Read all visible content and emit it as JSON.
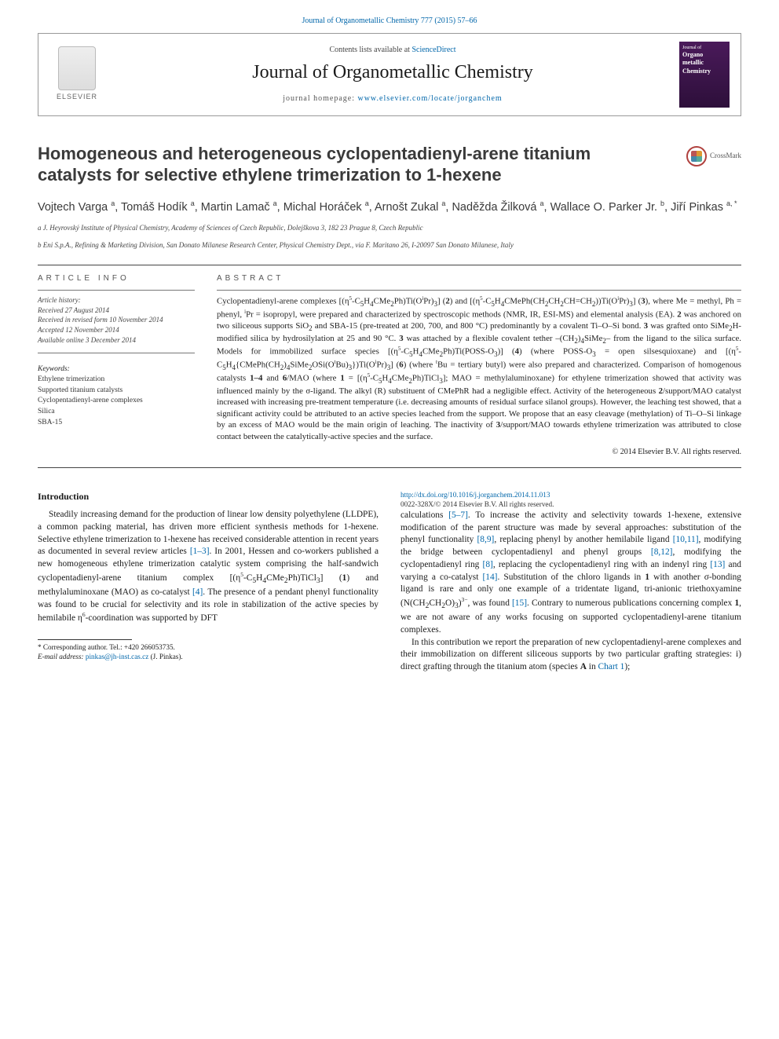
{
  "top_citation": "Journal of Organometallic Chemistry 777 (2015) 57–66",
  "header": {
    "contents_prefix": "Contents lists available at ",
    "contents_link": "ScienceDirect",
    "journal_name": "Journal of Organometallic Chemistry",
    "home_prefix": "journal homepage: ",
    "home_link": "www.elsevier.com/locate/jorganchem",
    "elsevier_label": "ELSEVIER",
    "cover_top": "Journal of",
    "cover_mid1": "Organo",
    "cover_mid2": "metallic",
    "cover_mid3": "Chemistry"
  },
  "crossmark_label": "CrossMark",
  "title": "Homogeneous and heterogeneous cyclopentadienyl-arene titanium catalysts for selective ethylene trimerization to 1-hexene",
  "authors_html": "Vojtech Varga <sup>a</sup>, Tomáš Hodík <sup>a</sup>, Martin Lamač <sup>a</sup>, Michal Horáček <sup>a</sup>, Arnošt Zukal <sup>a</sup>, Naděžda Žilková <sup>a</sup>, Wallace O. Parker Jr. <sup>b</sup>, Jiří Pinkas <sup>a, *</sup>",
  "affiliations": {
    "a": "a J. Heyrovský Institute of Physical Chemistry, Academy of Sciences of Czech Republic, Dolejškova 3, 182 23 Prague 8, Czech Republic",
    "b": "b Eni S.p.A., Refining & Marketing Division, San Donato Milanese Research Center, Physical Chemistry Dept., via F. Maritano 26, I-20097 San Donato Milanese, Italy"
  },
  "article_info": {
    "heading": "ARTICLE INFO",
    "history_label": "Article history:",
    "received": "Received 27 August 2014",
    "revised": "Received in revised form 10 November 2014",
    "accepted": "Accepted 12 November 2014",
    "online": "Available online 3 December 2014",
    "kw_label": "Keywords:",
    "keywords": [
      "Ethylene trimerization",
      "Supported titanium catalysts",
      "Cyclopentadienyl-arene complexes",
      "Silica",
      "SBA-15"
    ]
  },
  "abstract": {
    "heading": "ABSTRACT",
    "body_html": "Cyclopentadienyl-arene complexes [(η<sup>5</sup>-C<sub>5</sub>H<sub>4</sub>CMe<sub>2</sub>Ph)Ti(O<sup>i</sup>Pr)<sub>3</sub>] (<b>2</b>) and [(η<sup>5</sup>-C<sub>5</sub>H<sub>4</sub>CMePh(CH<sub>2</sub>CH<sub>2</sub>CH=CH<sub>2</sub>))Ti(O<sup>i</sup>Pr)<sub>3</sub>] (<b>3</b>), where Me = methyl, Ph = phenyl, <sup>i</sup>Pr = isopropyl, were prepared and characterized by spectroscopic methods (NMR, IR, ESI-MS) and elemental analysis (EA). <b>2</b> was anchored on two siliceous supports SiO<sub>2</sub> and SBA-15 (pre-treated at 200, 700, and 800 °C) predominantly by a covalent Ti–O–Si bond. <b>3</b> was grafted onto SiMe<sub>2</sub>H-modified silica by hydrosilylation at 25 and 90 °C. <b>3</b> was attached by a flexible covalent tether –(CH<sub>2</sub>)<sub>4</sub>SiMe<sub>2</sub>– from the ligand to the silica surface. Models for immobilized surface species [(η<sup>5</sup>-C<sub>5</sub>H<sub>4</sub>CMe<sub>2</sub>Ph)Ti(POSS-O<sub>3</sub>)] (<b>4</b>) (where POSS-O<sub>3</sub> = open silsesquioxane) and [(η<sup>5</sup>-C<sub>5</sub>H<sub>4</sub>{CMePh(CH<sub>2</sub>)<sub>4</sub>SiMe<sub>2</sub>OSi(O<sup>t</sup>Bu)<sub>3</sub>})Ti(O<sup>i</sup>Pr)<sub>3</sub>] (<b>6</b>) (where <sup>t</sup>Bu = tertiary butyl) were also prepared and characterized. Comparison of homogenous catalysts <b>1–4</b> and <b>6</b>/MAO (where <b>1</b> = [(η<sup>5</sup>-C<sub>5</sub>H<sub>4</sub>CMe<sub>2</sub>Ph)TiCl<sub>3</sub>]; MAO = methylaluminoxane) for ethylene trimerization showed that activity was influenced mainly by the σ-ligand. The alkyl (R) substituent of CMePhR had a negligible effect. Activity of the heterogeneous <b>2</b>/support/MAO catalyst increased with increasing pre-treatment temperature (i.e. decreasing amounts of residual surface silanol groups). However, the leaching test showed, that a significant activity could be attributed to an active species leached from the support. We propose that an easy cleavage (methylation) of Ti–O–Si linkage by an excess of MAO would be the main origin of leaching. The inactivity of <b>3</b>/support/MAO towards ethylene trimerization was attributed to close contact between the catalytically-active species and the surface.",
    "copyright": "© 2014 Elsevier B.V. All rights reserved."
  },
  "intro": {
    "heading": "Introduction",
    "para1_html": "Steadily increasing demand for the production of linear low density polyethylene (LLDPE), a common packing material, has driven more efficient synthesis methods for 1-hexene. Selective ethylene trimerization to 1-hexene has received considerable attention in recent years as documented in several review articles <span class='link'>[1–3]</span>. In 2001, Hessen and co-workers published a new homogeneous ethylene trimerization catalytic system comprising the half-sandwich cyclopentadienyl-arene titanium complex [(η<sup>5</sup>-C<sub>5</sub>H<sub>4</sub>CMe<sub>2</sub>Ph)TiCl<sub>3</sub>] (<b>1</b>) and methylaluminoxane (MAO) as co-catalyst <span class='link'>[4]</span>. The presence of a pendant phenyl functionality was found to be crucial for selectivity and its role in stabilization of the active species by hemilabile η<sup>6</sup>-coordination was supported by DFT",
    "para2_html": "calculations <span class='link'>[5–7]</span>. To increase the activity and selectivity towards 1-hexene, extensive modification of the parent structure was made by several approaches: substitution of the phenyl functionality <span class='link'>[8,9]</span>, replacing phenyl by another hemilabile ligand <span class='link'>[10,11]</span>, modifying the bridge between cyclopentadienyl and phenyl groups <span class='link'>[8,12]</span>, modifying the cyclopentadienyl ring <span class='link'>[8]</span>, replacing the cyclopentadienyl ring with an indenyl ring <span class='link'>[13]</span> and varying a co-catalyst <span class='link'>[14]</span>. Substitution of the chloro ligands in <b>1</b> with another σ-bonding ligand is rare and only one example of a tridentate ligand, tri-anionic triethoxyamine (N(CH<sub>2</sub>CH<sub>2</sub>O)<sub>3</sub>)<sup>3−</sup>, was found <span class='link'>[15]</span>. Contrary to numerous publications concerning complex <b>1</b>, we are not aware of any works focusing on supported cyclopentadienyl-arene titanium complexes.",
    "para3_html": "In this contribution we report the preparation of new cyclopentadienyl-arene complexes and their immobilization on different siliceous supports by two particular grafting strategies: i) direct grafting through the titanium atom (species <b>A</b> in <span class='link'>Chart 1</span>);"
  },
  "footnotes": {
    "corr": "* Corresponding author. Tel.: +420 266053735.",
    "email_label": "E-mail address: ",
    "email": "pinkas@jh-inst.cas.cz",
    "email_suffix": " (J. Pinkas)."
  },
  "doi": {
    "link": "http://dx.doi.org/10.1016/j.jorganchem.2014.11.013",
    "issn_line": "0022-328X/© 2014 Elsevier B.V. All rights reserved."
  },
  "colors": {
    "link": "#0066aa",
    "text": "#1a1a1a",
    "rule": "#444444",
    "cover_bg_top": "#4a1a5a",
    "cover_bg_bot": "#2d0f3a"
  }
}
